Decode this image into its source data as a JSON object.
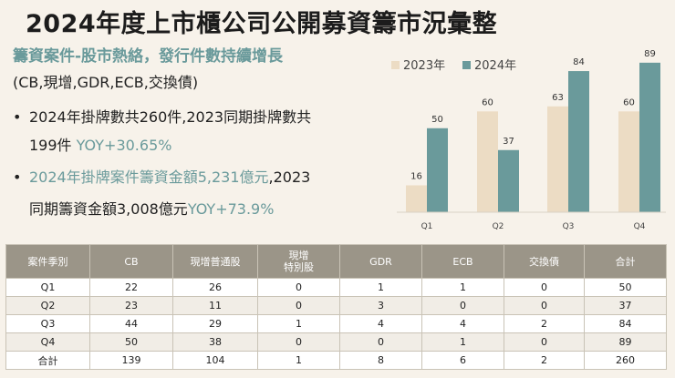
{
  "title": "2024年度上市櫃公司公開募資籌市況彙整",
  "subtitle": "籌資案件-股市熱絡，發行件數持續增長",
  "subnote": "(CB,現增,GDR,ECB,交換債)",
  "bullets": [
    {
      "dot": "•",
      "line1_a": "2024年掛牌數共260件,2023同期掛牌數共",
      "line2_a": "199件 ",
      "line2_b": "YOY+30.65%"
    },
    {
      "dot": "•",
      "line1_a": "2024年掛牌案件籌資金額5,231億元",
      "line1_b": ",2023",
      "line2_a": "同期籌資金額3,008億元",
      "line2_b": "YOY+73.9%"
    }
  ],
  "colors": {
    "series_2023": "#ecdcc4",
    "series_2024": "#6a9a9b",
    "table_header": "#9b9588",
    "accent": "#6a9a9b"
  },
  "chart_data": {
    "type": "bar",
    "categories": [
      "Q1",
      "Q2",
      "Q3",
      "Q4"
    ],
    "series": [
      {
        "name": "2023年",
        "values": [
          16,
          60,
          63,
          60
        ]
      },
      {
        "name": "2024年",
        "values": [
          50,
          37,
          84,
          89
        ]
      }
    ],
    "ylim": [
      0,
      90
    ],
    "legend": "top-left"
  },
  "table": {
    "headers": [
      "案件季別",
      "CB",
      "現增普通股",
      "現增\n特別股",
      "GDR",
      "ECB",
      "交換債",
      "合計"
    ],
    "rows": [
      [
        "Q1",
        "22",
        "26",
        "0",
        "1",
        "1",
        "0",
        "50"
      ],
      [
        "Q2",
        "23",
        "11",
        "0",
        "3",
        "0",
        "0",
        "37"
      ],
      [
        "Q3",
        "44",
        "29",
        "1",
        "4",
        "4",
        "2",
        "84"
      ],
      [
        "Q4",
        "50",
        "38",
        "0",
        "0",
        "1",
        "0",
        "89"
      ],
      [
        "合計",
        "139",
        "104",
        "1",
        "8",
        "6",
        "2",
        "260"
      ]
    ]
  }
}
